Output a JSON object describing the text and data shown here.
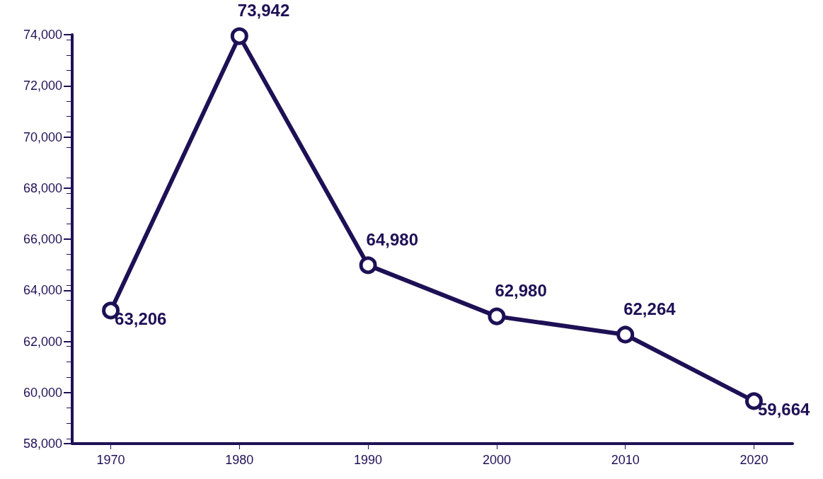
{
  "chart_data": {
    "type": "line",
    "x": [
      1970,
      1980,
      1990,
      2000,
      2010,
      2020
    ],
    "series": [
      {
        "color": "#1e1055",
        "values": [
          63206,
          73942,
          64980,
          62980,
          62264,
          59664
        ],
        "value_labels": [
          "63,206",
          "73,942",
          "64,980",
          "62,980",
          "62,264",
          "59,664"
        ]
      }
    ],
    "xlim": [
      1967,
      2023
    ],
    "xticks": [
      1970,
      1980,
      1990,
      2000,
      2010,
      2020
    ],
    "ylim": [
      58000,
      74000
    ],
    "yticks": [
      {
        "value": 58000,
        "label": "58,000"
      },
      {
        "value": 60000,
        "label": "60,000"
      },
      {
        "value": 62000,
        "label": "62,000"
      },
      {
        "value": 64000,
        "label": "64,000"
      },
      {
        "value": 66000,
        "label": "66,000"
      },
      {
        "value": 68000,
        "label": "68,000"
      },
      {
        "value": 70000,
        "label": "70,000"
      },
      {
        "value": 72000,
        "label": "72,000"
      },
      {
        "value": 74000,
        "label": "74,000"
      }
    ],
    "marker": "circle",
    "line_style": "solid",
    "grid": false
  }
}
